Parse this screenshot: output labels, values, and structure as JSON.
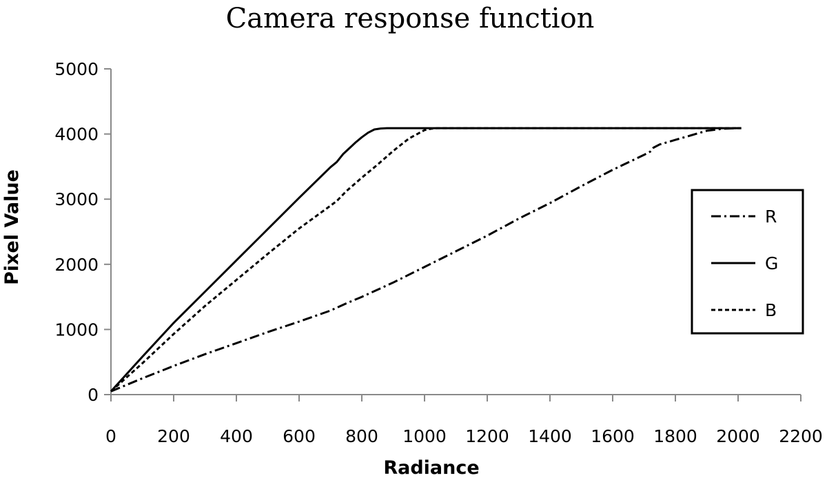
{
  "chart_data": {
    "type": "line",
    "title": "Camera response function",
    "xlabel": "Radiance",
    "ylabel": "Pixel Value",
    "xlim": [
      0,
      2200
    ],
    "ylim": [
      0,
      5000
    ],
    "x_ticks": [
      "0",
      "200",
      "400",
      "600",
      "800",
      "1000",
      "1200",
      "1400",
      "1600",
      "1800",
      "2000",
      "2200"
    ],
    "y_ticks": [
      "0",
      "1000",
      "2000",
      "3000",
      "4000",
      "5000"
    ],
    "grid": false,
    "legend_position": "right",
    "series": [
      {
        "name": "R",
        "style": "dash-dot",
        "color": "#000000",
        "x": [
          0,
          100,
          200,
          300,
          400,
          500,
          600,
          700,
          750,
          800,
          900,
          1000,
          1100,
          1200,
          1300,
          1400,
          1500,
          1600,
          1700,
          1720,
          1730,
          1750,
          1800,
          1850,
          1900,
          1950,
          2000,
          2010
        ],
        "y": [
          50,
          250,
          440,
          620,
          790,
          960,
          1120,
          1290,
          1400,
          1500,
          1720,
          1960,
          2200,
          2440,
          2700,
          2940,
          3200,
          3450,
          3680,
          3730,
          3790,
          3840,
          3910,
          3980,
          4050,
          4080,
          4090,
          4090
        ]
      },
      {
        "name": "G",
        "style": "solid",
        "color": "#000000",
        "x": [
          0,
          100,
          200,
          300,
          400,
          500,
          600,
          700,
          720,
          740,
          760,
          780,
          800,
          820,
          840,
          860,
          880,
          900,
          1000,
          1200,
          1400,
          1600,
          1800,
          2000,
          2010
        ],
        "y": [
          50,
          580,
          1100,
          1580,
          2060,
          2540,
          3020,
          3490,
          3570,
          3690,
          3780,
          3870,
          3950,
          4020,
          4070,
          4085,
          4090,
          4090,
          4090,
          4090,
          4090,
          4090,
          4090,
          4090,
          4090
        ]
      },
      {
        "name": "B",
        "style": "dashed",
        "color": "#000000",
        "x": [
          0,
          100,
          200,
          300,
          400,
          500,
          600,
          700,
          720,
          750,
          800,
          850,
          900,
          950,
          1000,
          1020,
          1040,
          1100,
          1200,
          1400,
          1600,
          1800,
          2000,
          2010
        ],
        "y": [
          50,
          480,
          930,
          1360,
          1760,
          2160,
          2550,
          2900,
          2970,
          3120,
          3330,
          3530,
          3740,
          3930,
          4060,
          4080,
          4090,
          4090,
          4090,
          4090,
          4090,
          4090,
          4090,
          4090
        ]
      }
    ]
  }
}
